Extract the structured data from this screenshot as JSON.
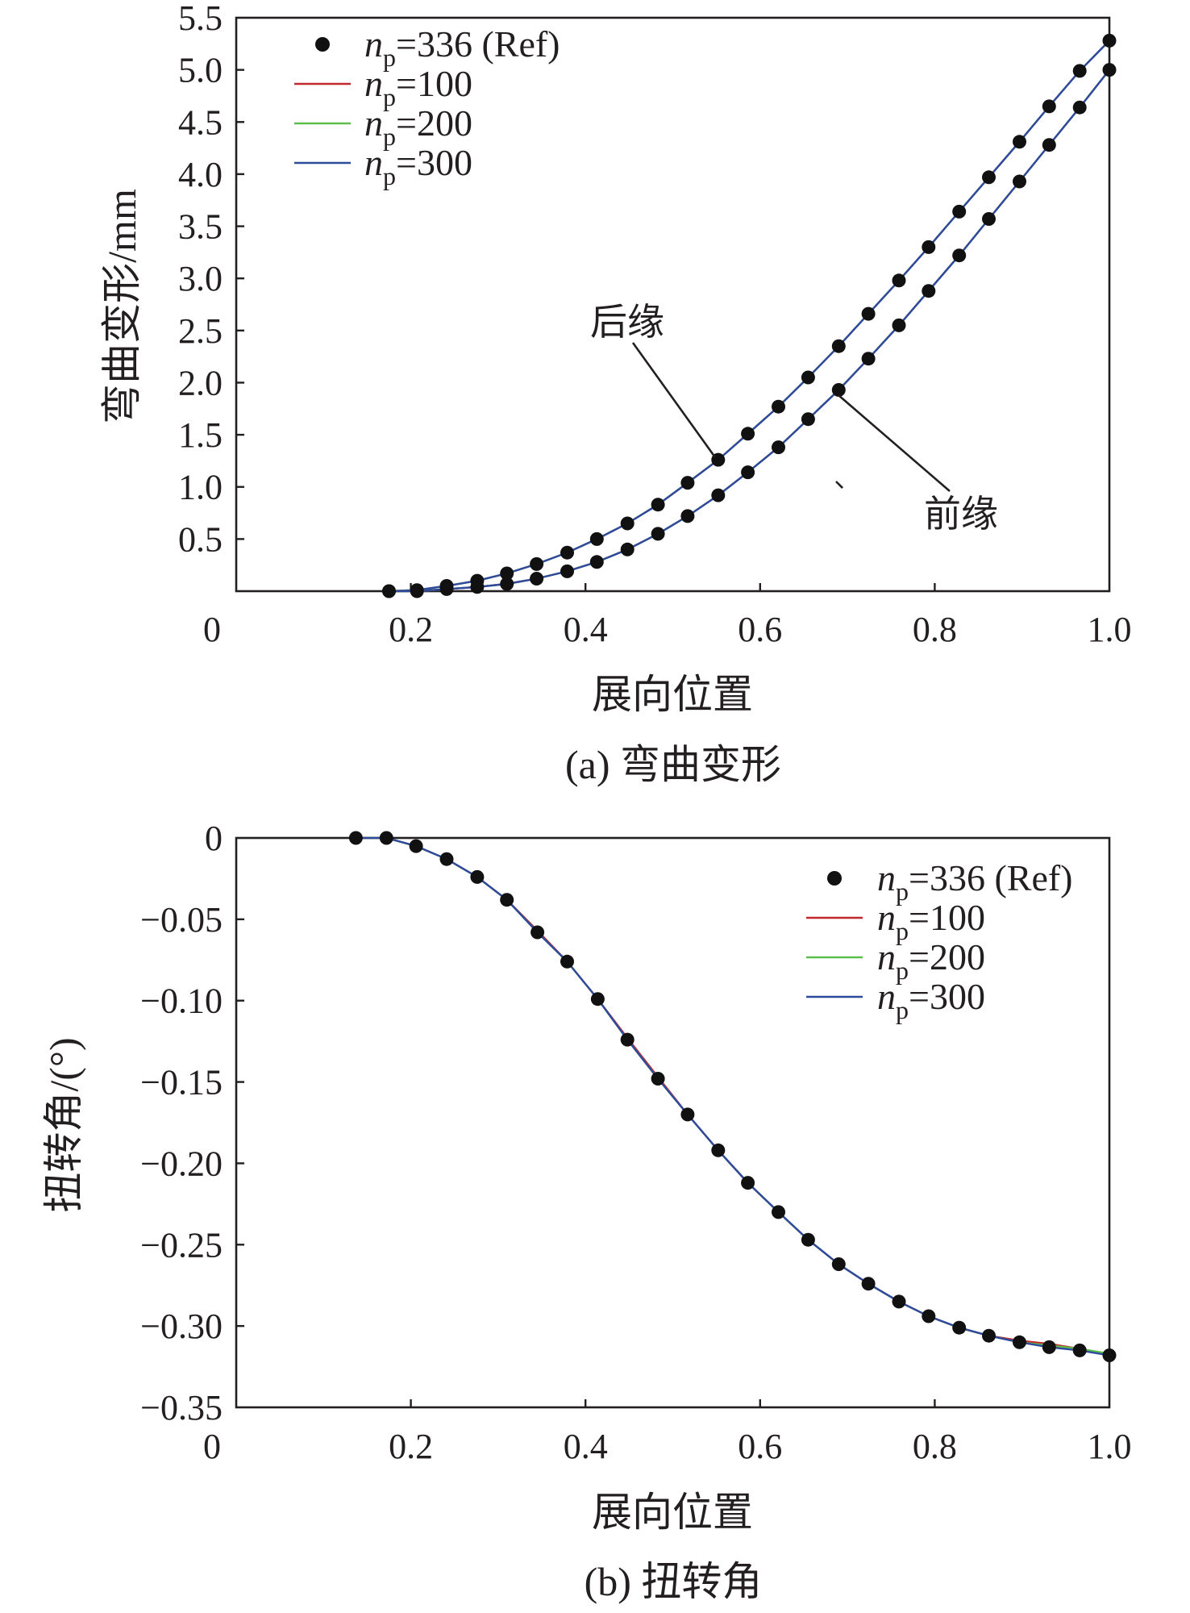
{
  "chart_data": [
    {
      "type": "line",
      "panel": "a",
      "caption": "(a) 弯曲变形",
      "xlabel": "展向位置",
      "ylabel": "弯曲变形/mm",
      "xlim": [
        0,
        1.0
      ],
      "ylim": [
        0,
        5.5
      ],
      "x_ticks": [
        "0",
        "0.2",
        "0.4",
        "0.6",
        "0.8",
        "1.0"
      ],
      "y_ticks": [
        "0.5",
        "1.0",
        "1.5",
        "2.0",
        "2.5",
        "3.0",
        "3.5",
        "4.0",
        "4.5",
        "5.0",
        "5.5"
      ],
      "legend": {
        "position": "top-left",
        "entries": [
          {
            "base": "n",
            "sub": "p",
            "rest": "=336 (Ref)",
            "kind": "marker",
            "color": "#111111"
          },
          {
            "base": "n",
            "sub": "p",
            "rest": "=100",
            "kind": "line",
            "color": "#c0282e"
          },
          {
            "base": "n",
            "sub": "p",
            "rest": "=200",
            "kind": "line",
            "color": "#5cbf4a"
          },
          {
            "base": "n",
            "sub": "p",
            "rest": "=300",
            "kind": "line",
            "color": "#2e4a9e"
          }
        ]
      },
      "annotations": [
        {
          "text": "后缘",
          "points_to": "trailing-edge curve at x≈0.55"
        },
        {
          "text": "前缘",
          "points_to": "leading-edge curve at x≈0.69"
        }
      ],
      "series": [
        {
          "name": "后缘 n_p=336 (Ref)",
          "kind": "marker",
          "color": "#111111",
          "x": [
            0.175,
            0.207,
            0.241,
            0.276,
            0.31,
            0.344,
            0.379,
            0.413,
            0.448,
            0.483,
            0.517,
            0.552,
            0.586,
            0.621,
            0.655,
            0.69,
            0.724,
            0.759,
            0.793,
            0.828,
            0.862,
            0.897,
            0.931,
            0.966,
            1.0
          ],
          "y": [
            0.0,
            0.01,
            0.05,
            0.1,
            0.17,
            0.26,
            0.37,
            0.5,
            0.65,
            0.83,
            1.04,
            1.26,
            1.51,
            1.77,
            2.05,
            2.35,
            2.66,
            2.98,
            3.3,
            3.64,
            3.97,
            4.31,
            4.65,
            4.99,
            5.28
          ]
        },
        {
          "name": "前缘 n_p=336 (Ref)",
          "kind": "marker",
          "color": "#111111",
          "x": [
            0.175,
            0.207,
            0.241,
            0.276,
            0.31,
            0.344,
            0.379,
            0.413,
            0.448,
            0.483,
            0.517,
            0.552,
            0.586,
            0.621,
            0.655,
            0.69,
            0.724,
            0.759,
            0.793,
            0.828,
            0.862,
            0.897,
            0.931,
            0.966,
            1.0
          ],
          "y": [
            0.0,
            0.0,
            0.02,
            0.04,
            0.07,
            0.12,
            0.19,
            0.28,
            0.4,
            0.55,
            0.72,
            0.92,
            1.14,
            1.38,
            1.65,
            1.93,
            2.23,
            2.55,
            2.88,
            3.22,
            3.57,
            3.93,
            4.28,
            4.64,
            5.0
          ]
        },
        {
          "name": "后缘 n_p=100",
          "kind": "line",
          "color": "#c0282e",
          "follows": "后缘 n_p=336 (Ref)"
        },
        {
          "name": "后缘 n_p=200",
          "kind": "line",
          "color": "#5cbf4a",
          "follows": "后缘 n_p=336 (Ref)"
        },
        {
          "name": "后缘 n_p=300",
          "kind": "line",
          "color": "#2e4a9e",
          "follows": "后缘 n_p=336 (Ref)"
        },
        {
          "name": "前缘 n_p=100",
          "kind": "line",
          "color": "#c0282e",
          "follows": "前缘 n_p=336 (Ref)"
        },
        {
          "name": "前缘 n_p=200",
          "kind": "line",
          "color": "#5cbf4a",
          "follows": "前缘 n_p=336 (Ref)"
        },
        {
          "name": "前缘 n_p=300",
          "kind": "line",
          "color": "#2e4a9e",
          "follows": "前缘 n_p=336 (Ref)"
        }
      ]
    },
    {
      "type": "line",
      "panel": "b",
      "caption": "(b) 扭转角",
      "xlabel": "展向位置",
      "ylabel": "扭转角/(°)",
      "xlim": [
        0,
        1.0
      ],
      "ylim": [
        -0.35,
        0
      ],
      "x_ticks": [
        "0",
        "0.2",
        "0.4",
        "0.6",
        "0.8",
        "1.0"
      ],
      "y_ticks": [
        "0",
        "−0.05",
        "−0.10",
        "−0.15",
        "−0.20",
        "−0.25",
        "−0.30",
        "−0.35"
      ],
      "legend": {
        "position": "top-right",
        "entries": [
          {
            "base": "n",
            "sub": "p",
            "rest": "=336 (Ref)",
            "kind": "marker",
            "color": "#111111"
          },
          {
            "base": "n",
            "sub": "p",
            "rest": "=100",
            "kind": "line",
            "color": "#c0282e"
          },
          {
            "base": "n",
            "sub": "p",
            "rest": "=200",
            "kind": "line",
            "color": "#5cbf4a"
          },
          {
            "base": "n",
            "sub": "p",
            "rest": "=300",
            "kind": "line",
            "color": "#2e4a9e"
          }
        ]
      },
      "series": [
        {
          "name": "n_p=336 (Ref)",
          "kind": "marker",
          "color": "#111111",
          "x": [
            0.137,
            0.172,
            0.206,
            0.241,
            0.276,
            0.31,
            0.345,
            0.379,
            0.414,
            0.448,
            0.483,
            0.517,
            0.552,
            0.586,
            0.621,
            0.655,
            0.69,
            0.724,
            0.759,
            0.793,
            0.828,
            0.862,
            0.897,
            0.931,
            0.966,
            1.0
          ],
          "y": [
            0.0,
            0.0,
            -0.005,
            -0.013,
            -0.024,
            -0.038,
            -0.058,
            -0.076,
            -0.099,
            -0.124,
            -0.148,
            -0.17,
            -0.192,
            -0.212,
            -0.23,
            -0.247,
            -0.262,
            -0.274,
            -0.285,
            -0.294,
            -0.301,
            -0.306,
            -0.31,
            -0.313,
            -0.315,
            -0.318
          ]
        },
        {
          "name": "n_p=100",
          "kind": "line",
          "color": "#c0282e",
          "x": [
            0.137,
            0.172,
            0.206,
            0.241,
            0.276,
            0.31,
            0.345,
            0.379,
            0.414,
            0.448,
            0.483,
            0.517,
            0.552,
            0.586,
            0.621,
            0.655,
            0.69,
            0.724,
            0.759,
            0.793,
            0.828,
            0.862,
            0.897,
            0.931,
            0.966,
            1.0
          ],
          "y": [
            0.0,
            0.0,
            -0.005,
            -0.013,
            -0.024,
            -0.038,
            -0.057,
            -0.076,
            -0.099,
            -0.123,
            -0.147,
            -0.17,
            -0.192,
            -0.212,
            -0.23,
            -0.247,
            -0.262,
            -0.274,
            -0.285,
            -0.294,
            -0.301,
            -0.306,
            -0.309,
            -0.311,
            -0.314,
            -0.318
          ]
        },
        {
          "name": "n_p=200",
          "kind": "line",
          "color": "#5cbf4a",
          "x": [
            0.137,
            0.172,
            0.206,
            0.241,
            0.276,
            0.31,
            0.345,
            0.379,
            0.414,
            0.448,
            0.483,
            0.517,
            0.552,
            0.586,
            0.621,
            0.655,
            0.69,
            0.724,
            0.759,
            0.793,
            0.828,
            0.862,
            0.897,
            0.931,
            0.966,
            1.0
          ],
          "y": [
            0.0,
            0.0,
            -0.005,
            -0.013,
            -0.024,
            -0.038,
            -0.058,
            -0.076,
            -0.099,
            -0.124,
            -0.148,
            -0.17,
            -0.192,
            -0.212,
            -0.23,
            -0.247,
            -0.262,
            -0.274,
            -0.285,
            -0.294,
            -0.301,
            -0.306,
            -0.31,
            -0.312,
            -0.314,
            -0.317
          ]
        },
        {
          "name": "n_p=300",
          "kind": "line",
          "color": "#2e4a9e",
          "x": [
            0.137,
            0.172,
            0.206,
            0.241,
            0.276,
            0.31,
            0.345,
            0.379,
            0.414,
            0.448,
            0.483,
            0.517,
            0.552,
            0.586,
            0.621,
            0.655,
            0.69,
            0.724,
            0.759,
            0.793,
            0.828,
            0.862,
            0.897,
            0.931,
            0.966,
            1.0
          ],
          "y": [
            0.0,
            0.0,
            -0.005,
            -0.013,
            -0.024,
            -0.038,
            -0.058,
            -0.076,
            -0.099,
            -0.124,
            -0.148,
            -0.17,
            -0.192,
            -0.212,
            -0.23,
            -0.247,
            -0.262,
            -0.274,
            -0.285,
            -0.294,
            -0.301,
            -0.306,
            -0.31,
            -0.313,
            -0.315,
            -0.318
          ]
        }
      ]
    }
  ]
}
